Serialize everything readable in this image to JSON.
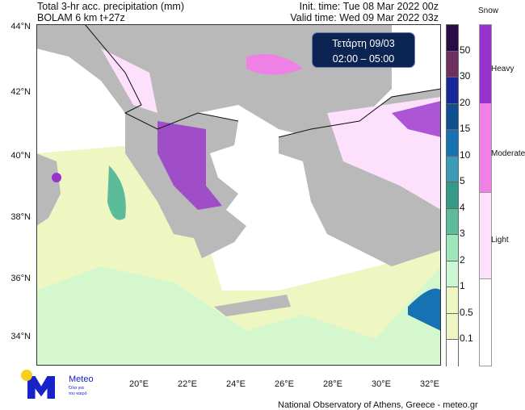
{
  "header": {
    "title": "Total 3-hr acc. precipitation (mm)",
    "model": "BOLAM 6 km t+27z",
    "init_time": "Init. time: Tue 08 Mar 2022 00z",
    "valid_time": "Valid time: Wed 09 Mar 2022 03z"
  },
  "badge": {
    "day": "Τετάρτη 09/03",
    "hours": "02:00 – 05:00"
  },
  "lat_labels": [
    "44°N",
    "42°N",
    "40°N",
    "38°N",
    "36°N",
    "34°N"
  ],
  "lon_labels": [
    "20°E",
    "22°E",
    "24°E",
    "26°E",
    "28°E",
    "30°E",
    "32°E"
  ],
  "precip_scale": {
    "labels": [
      "50",
      "30",
      "20",
      "15",
      "10",
      "5",
      "4",
      "3",
      "2",
      "1",
      "0.5",
      "0.1"
    ],
    "colors": [
      "#2b0b47",
      "#6e2f62",
      "#18279a",
      "#10508e",
      "#1672b2",
      "#3b9bb8",
      "#359987",
      "#5bbb9b",
      "#9ce8bb",
      "#cbf8d2",
      "#eef6c2",
      "#eef6c2",
      "#ffffff"
    ]
  },
  "snow_scale": {
    "title": "Snow",
    "labels": [
      "Heavy",
      "Moderate",
      "Light"
    ],
    "colors": [
      "#9933cc",
      "#ee80e6",
      "#fde0fb",
      "#ffffff"
    ]
  },
  "logo": {
    "name": "Meteo",
    "tagline1": "Όλα για",
    "tagline2": "τον καιρό"
  },
  "credit": "National Observatory of Athens, Greece - meteo.gr"
}
